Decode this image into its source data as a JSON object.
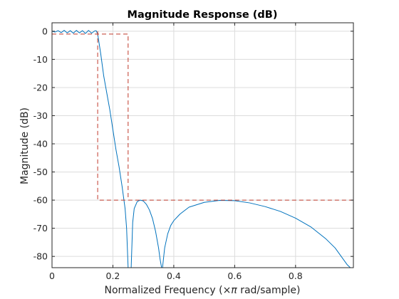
{
  "chart_data": {
    "type": "line",
    "title": "Magnitude Response (dB)",
    "xlabel_prefix": "Normalized Frequency (",
    "xlabel_symbol": "×π",
    "xlabel_suffix": " rad/sample)",
    "ylabel": "Magnitude (dB)",
    "xlim": [
      0,
      0.99
    ],
    "ylim": [
      -84,
      3
    ],
    "xticks": [
      0,
      0.2,
      0.4,
      0.6,
      0.8
    ],
    "xtick_labels": [
      "0",
      "0.2",
      "0.4",
      "0.6",
      "0.8"
    ],
    "yticks": [
      0,
      -10,
      -20,
      -30,
      -40,
      -50,
      -60,
      -70,
      -80
    ],
    "ytick_labels": [
      "0",
      "-10",
      "-20",
      "-30",
      "-40",
      "-50",
      "-60",
      "-70",
      "-80"
    ],
    "grid": true,
    "colors": {
      "response": "#0072BD",
      "mask": "#C0392B",
      "grid": "#DCDCDC",
      "axes": "#262626"
    },
    "series": [
      {
        "style": "solid",
        "segments": [
          {
            "x": [
              0,
              0.01,
              0.02,
              0.03,
              0.04,
              0.05,
              0.06,
              0.07,
              0.08,
              0.09,
              0.1,
              0.11,
              0.12,
              0.13,
              0.14,
              0.145,
              0.15,
              0.16,
              0.17,
              0.18,
              0.19,
              0.2,
              0.21,
              0.22,
              0.23,
              0.24,
              0.245,
              0.25
            ],
            "y": [
              0,
              -0.3,
              0.2,
              -0.5,
              0.3,
              -0.6,
              0.2,
              -0.7,
              0.3,
              -0.6,
              0.2,
              -0.8,
              0.3,
              -0.7,
              0.1,
              0.2,
              -1,
              -8,
              -16,
              -22,
              -28,
              -35,
              -42,
              -48,
              -55,
              -63,
              -70,
              -84
            ]
          },
          {
            "x": [
              0.26,
              0.265,
              0.27,
              0.28,
              0.29,
              0.3,
              0.31,
              0.32,
              0.33,
              0.34,
              0.35,
              0.355,
              0.36
            ],
            "y": [
              -84,
              -68,
              -63,
              -60.5,
              -60,
              -60.3,
              -61.5,
              -63.5,
              -66.5,
              -71,
              -77,
              -81,
              -84
            ]
          },
          {
            "x": [
              0.363,
              0.37,
              0.38,
              0.39,
              0.4,
              0.42,
              0.45,
              0.5,
              0.55,
              0.6,
              0.65,
              0.7,
              0.75,
              0.8,
              0.85,
              0.9,
              0.93,
              0.95,
              0.97,
              0.98
            ],
            "y": [
              -84,
              -77,
              -72,
              -69,
              -67.3,
              -65,
              -62.5,
              -60.8,
              -60.1,
              -60.2,
              -61,
              -62.3,
              -64,
              -66.4,
              -69.5,
              -73.8,
              -77,
              -80,
              -83,
              -84
            ]
          }
        ]
      },
      {
        "style": "dashed",
        "segments": [
          {
            "x": [
              0,
              0.25,
              0.25
            ],
            "y": [
              -1,
              -1,
              -60
            ]
          },
          {
            "x": [
              0.15,
              0.15,
              0.99
            ],
            "y": [
              0,
              -60,
              -60
            ]
          }
        ]
      }
    ]
  }
}
